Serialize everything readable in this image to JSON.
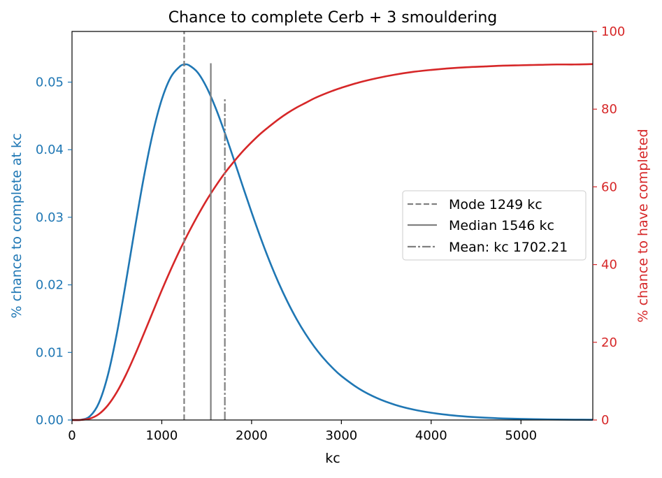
{
  "chart_data": {
    "type": "line",
    "title": "Chance to complete Cerb + 3 smouldering",
    "xlabel": "kc",
    "ylabel_left": "% chance to complete at kc",
    "ylabel_right": "% chance to have completed",
    "xlim": [
      0,
      5800
    ],
    "ylim_left": [
      0,
      0.0575
    ],
    "ylim_right": [
      0,
      100
    ],
    "x_ticks": [
      0,
      1000,
      2000,
      3000,
      4000,
      5000
    ],
    "y_left_ticks": [
      "0.00",
      "0.01",
      "0.02",
      "0.03",
      "0.04",
      "0.05"
    ],
    "y_right_ticks": [
      0,
      20,
      40,
      60,
      80,
      100
    ],
    "colors": {
      "left_axis": "#1f77b4",
      "right_axis": "#d62728",
      "marker_lines": "#808080"
    },
    "series": [
      {
        "axis": "left",
        "color": "#1f77b4",
        "x": [
          0,
          100,
          200,
          300,
          400,
          500,
          600,
          700,
          800,
          900,
          1000,
          1100,
          1200,
          1250,
          1300,
          1400,
          1500,
          1600,
          1700,
          1800,
          1900,
          2000,
          2100,
          2200,
          2300,
          2400,
          2500,
          2600,
          2700,
          2800,
          2900,
          3000,
          3200,
          3400,
          3600,
          3800,
          4000,
          4200,
          4400,
          4600,
          4800,
          5000,
          5200,
          5400,
          5600,
          5800
        ],
        "values": [
          0,
          3e-05,
          0.00056,
          0.00254,
          0.00667,
          0.01284,
          0.02037,
          0.02835,
          0.03593,
          0.04244,
          0.04744,
          0.05073,
          0.05231,
          0.0526,
          0.05252,
          0.05142,
          0.04921,
          0.04616,
          0.04256,
          0.03866,
          0.03466,
          0.03073,
          0.02699,
          0.0235,
          0.02033,
          0.01749,
          0.01496,
          0.01275,
          0.01082,
          0.00916,
          0.00773,
          0.00651,
          0.0046,
          0.00322,
          0.00224,
          0.00155,
          0.00107,
          0.00073,
          0.0005,
          0.00034,
          0.00023,
          0.00016,
          0.00011,
          7e-05,
          5e-05,
          3e-05
        ]
      },
      {
        "axis": "right",
        "color": "#d62728",
        "x": [
          0,
          100,
          200,
          300,
          400,
          500,
          600,
          700,
          800,
          900,
          1000,
          1100,
          1200,
          1250,
          1300,
          1400,
          1500,
          1600,
          1700,
          1800,
          1900,
          2000,
          2100,
          2200,
          2300,
          2400,
          2500,
          2600,
          2700,
          2800,
          2900,
          3000,
          3200,
          3400,
          3600,
          3800,
          4000,
          4200,
          4400,
          4600,
          4800,
          5000,
          5200,
          5400,
          5600,
          5800
        ],
        "values": [
          0,
          0.02,
          0.37,
          1.53,
          3.8,
          7.2,
          11.6,
          16.7,
          22.2,
          27.8,
          33.4,
          38.7,
          43.7,
          46.0,
          48.3,
          52.6,
          56.6,
          60.2,
          63.5,
          66.4,
          69.1,
          71.5,
          73.7,
          75.6,
          77.4,
          79.0,
          80.4,
          81.6,
          82.8,
          83.8,
          84.7,
          85.5,
          86.9,
          88.0,
          88.9,
          89.6,
          90.1,
          90.5,
          90.8,
          91.0,
          91.2,
          91.3,
          91.4,
          91.5,
          91.5,
          91.6
        ]
      }
    ],
    "legend": {
      "placement": "center-right",
      "entries": [
        {
          "label": "Mode 1249 kc",
          "style": "dashed",
          "x": 1249,
          "top_left": 0.0575
        },
        {
          "label": "Median 1546 kc",
          "style": "solid",
          "x": 1546,
          "top_left": 0.0528
        },
        {
          "label": "Mean: kc 1702.21",
          "style": "dashdot",
          "x": 1702.21,
          "top_left": 0.0475
        }
      ]
    }
  }
}
